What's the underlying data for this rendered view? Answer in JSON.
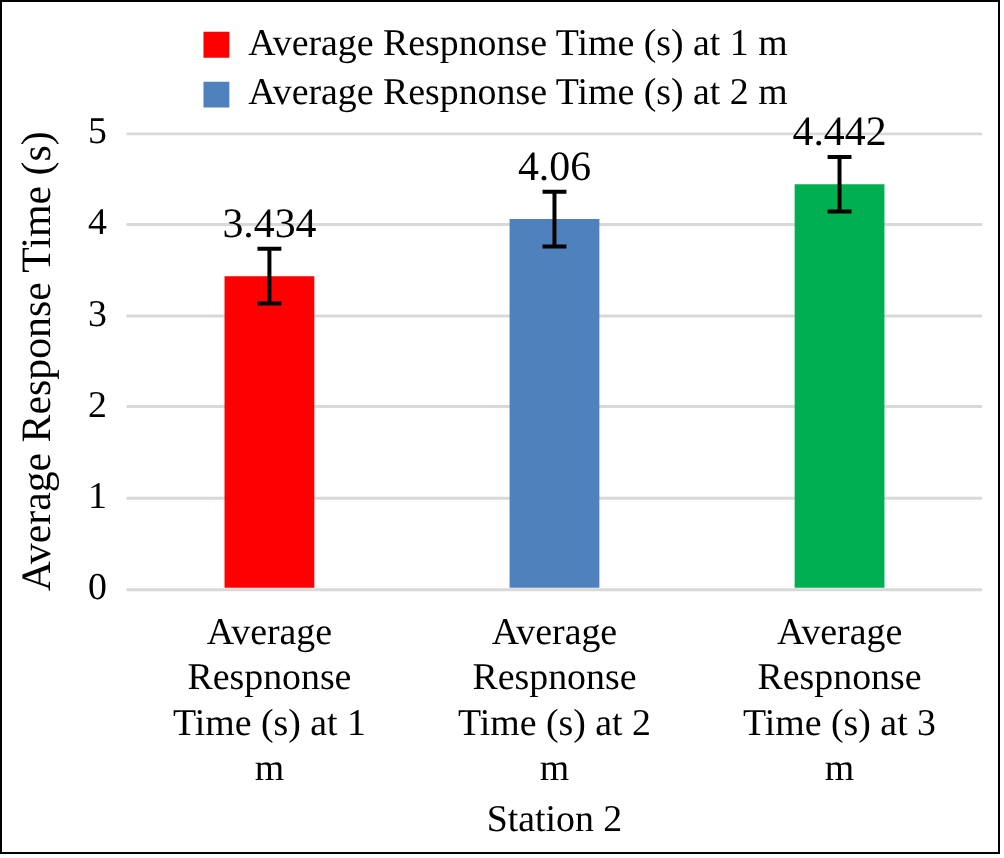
{
  "chart_data": {
    "type": "bar",
    "categories": [
      "Average Respnonse Time (s) at 1 m",
      "Average Respnonse Time (s) at 2 m",
      "Average Respnonse Time (s) at 3 m"
    ],
    "series": [
      {
        "name": "Average Respnonse Time (s) at 1 m",
        "color": "#ff0000",
        "values": [
          3.434,
          null,
          null
        ],
        "errors": [
          0.3,
          null,
          null
        ]
      },
      {
        "name": "Average Respnonse Time (s) at 2 m",
        "color": "#4f81bd",
        "values": [
          null,
          4.06,
          null
        ],
        "errors": [
          null,
          0.3,
          null
        ]
      },
      {
        "color": "#00b050",
        "values": [
          null,
          null,
          4.442
        ],
        "errors": [
          null,
          null,
          0.3
        ]
      }
    ],
    "xlabel": "Station 2",
    "ylabel": "Average Response Time (s)",
    "ylim": [
      0,
      5
    ],
    "yticks": [
      0,
      1,
      2,
      3,
      4,
      5
    ],
    "grid": "y",
    "legend": "top",
    "data_labels": true
  }
}
